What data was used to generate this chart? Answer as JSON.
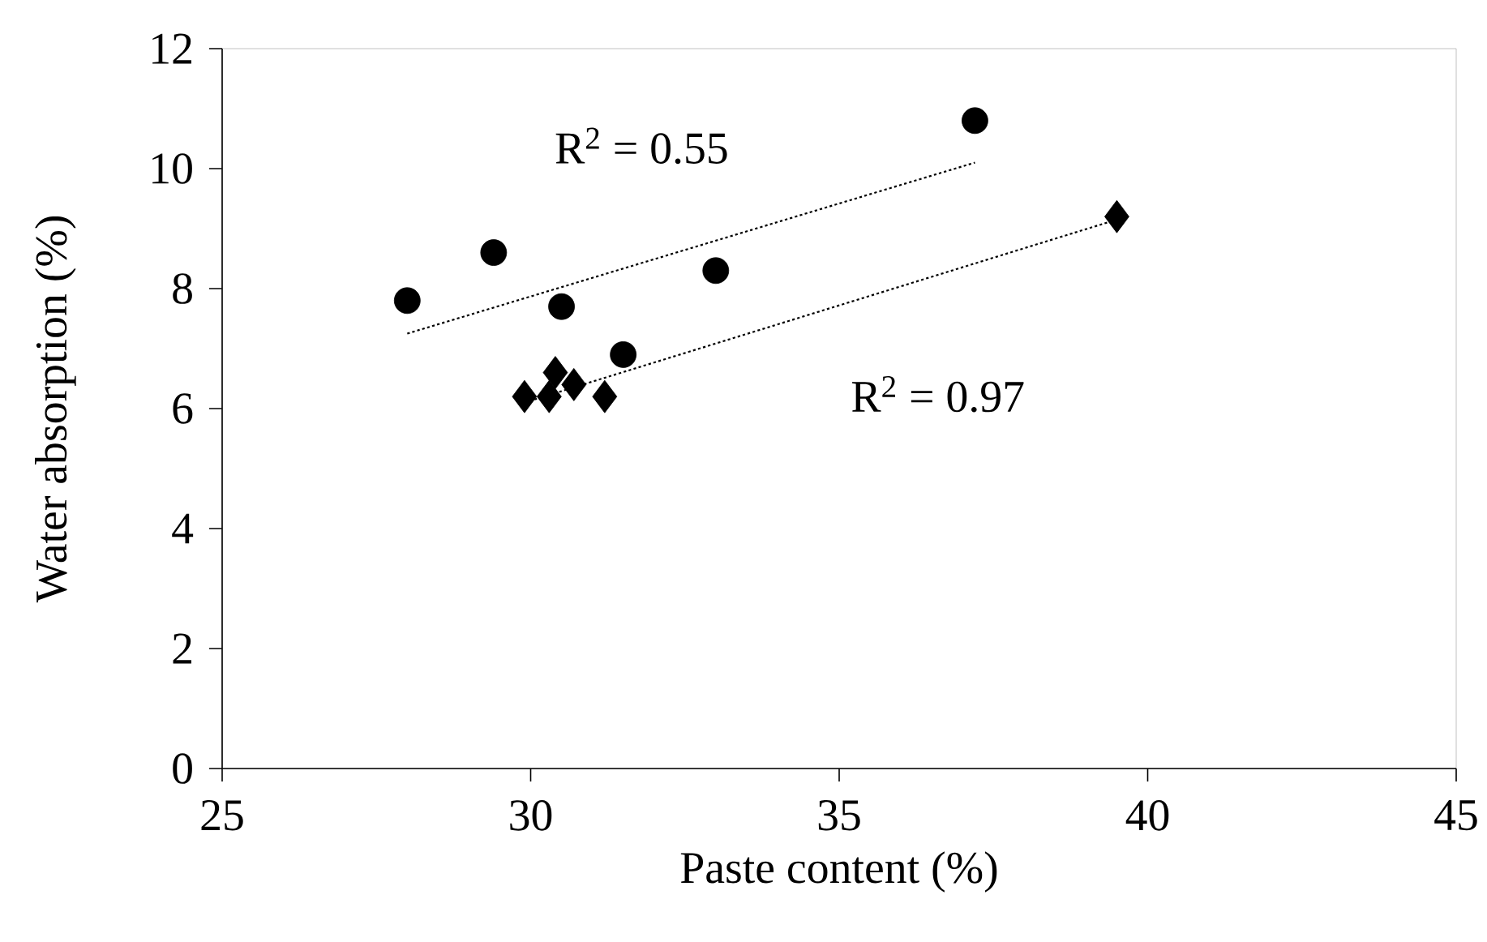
{
  "chart_data": {
    "type": "scatter",
    "xlabel": "Paste content (%)",
    "ylabel": "Water absorption (%)",
    "xlim": [
      25,
      45
    ],
    "xticks": [
      25,
      30,
      35,
      40,
      45
    ],
    "ylim": [
      0,
      12
    ],
    "yticks": [
      0,
      2,
      4,
      6,
      8,
      10,
      12
    ],
    "series": [
      {
        "type": "line",
        "color": "#000000",
        "line_style": "dotted",
        "marker": "none",
        "x": [
          28.0,
          37.2
        ],
        "values": [
          7.25,
          10.1
        ]
      },
      {
        "type": "line",
        "color": "#000000",
        "line_style": "dotted",
        "marker": "none",
        "x": [
          29.9,
          39.5
        ],
        "values": [
          6.1,
          9.15
        ]
      },
      {
        "color": "#000000",
        "marker": "circle",
        "x": [
          28.0,
          29.4,
          30.5,
          31.5,
          33.0,
          37.2
        ],
        "values": [
          7.8,
          8.6,
          7.7,
          6.9,
          8.3,
          10.8
        ]
      },
      {
        "color": "#000000",
        "marker": "diamond",
        "x": [
          29.9,
          30.3,
          30.4,
          30.7,
          31.2,
          39.5
        ],
        "values": [
          6.2,
          6.2,
          6.6,
          6.4,
          6.2,
          9.2
        ]
      }
    ],
    "annotations": [
      "R$^{2}$ = 0.55",
      "R$^{2}$ = 0.97"
    ]
  }
}
